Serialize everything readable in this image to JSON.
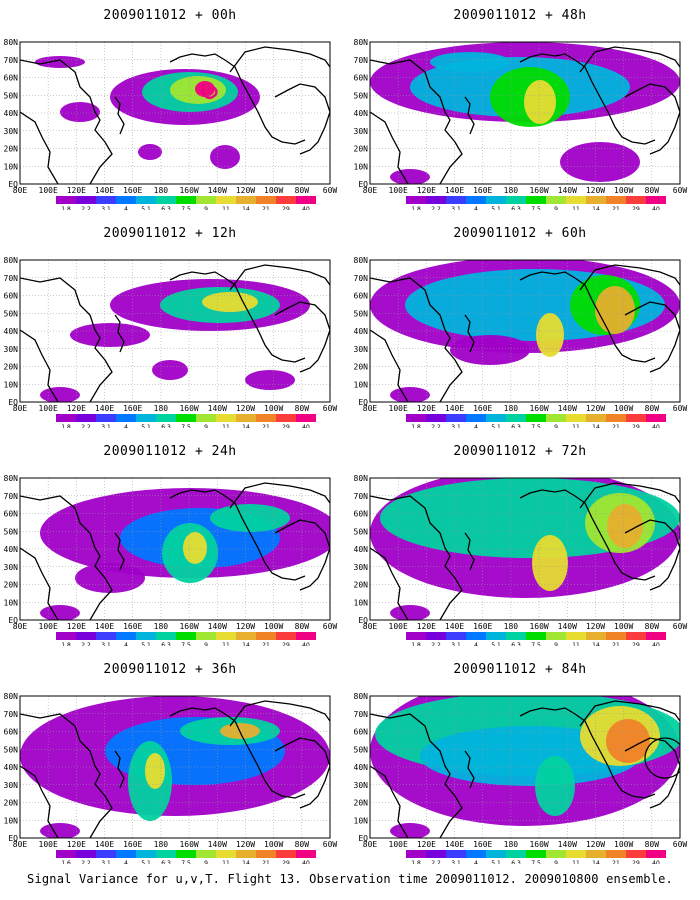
{
  "caption": "Signal Variance for u,v,T. Flight 13. Observation time 2009011012. 2009010800 ensemble.",
  "colorbar": {
    "levels": [
      "1.8",
      "2.2",
      "3.1",
      "4",
      "5.1",
      "6.3",
      "7.5",
      "9",
      "11",
      "14",
      "21",
      "29",
      "40"
    ],
    "levels_first_panel": [
      "1.6",
      "2.2",
      "3.1",
      "4",
      "5.1",
      "6.3",
      "7.5",
      "9",
      "11",
      "14",
      "21",
      "29",
      "40"
    ],
    "colors": [
      "#a000c8",
      "#7800dc",
      "#3c3cff",
      "#0078ff",
      "#00b4dc",
      "#00d2a0",
      "#00dc00",
      "#a0e632",
      "#e6dc32",
      "#e6af2d",
      "#f08228",
      "#fa3c3c",
      "#f00082"
    ]
  },
  "axes": {
    "lat_labels": [
      "80N",
      "70N",
      "60N",
      "50N",
      "40N",
      "30N",
      "20N",
      "10N",
      "EQ"
    ],
    "lon_labels": [
      "80E",
      "100E",
      "120E",
      "140E",
      "160E",
      "180",
      "160W",
      "140W",
      "120W",
      "100W",
      "80W",
      "60W"
    ]
  },
  "panels": [
    {
      "title": "2009011012 + 00h"
    },
    {
      "title": "2009011012 + 12h"
    },
    {
      "title": "2009011012 + 24h"
    },
    {
      "title": "2009011012 + 36h"
    },
    {
      "title": "2009011012 + 48h"
    },
    {
      "title": "2009011012 + 60h"
    },
    {
      "title": "2009011012 + 72h"
    },
    {
      "title": "2009011012 + 84h"
    }
  ]
}
